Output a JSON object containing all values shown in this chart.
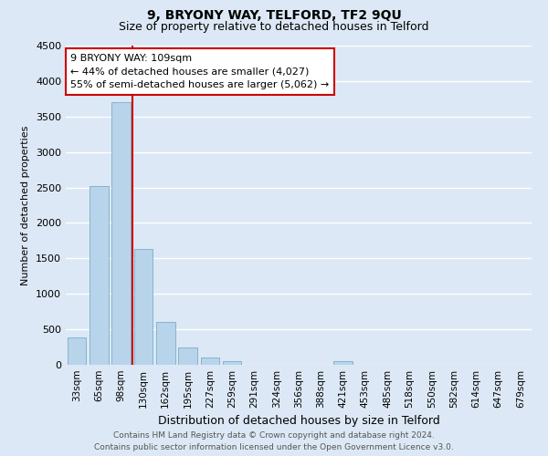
{
  "title": "9, BRYONY WAY, TELFORD, TF2 9QU",
  "subtitle": "Size of property relative to detached houses in Telford",
  "xlabel": "Distribution of detached houses by size in Telford",
  "ylabel": "Number of detached properties",
  "bar_labels": [
    "33sqm",
    "65sqm",
    "98sqm",
    "130sqm",
    "162sqm",
    "195sqm",
    "227sqm",
    "259sqm",
    "291sqm",
    "324sqm",
    "356sqm",
    "388sqm",
    "421sqm",
    "453sqm",
    "485sqm",
    "518sqm",
    "550sqm",
    "582sqm",
    "614sqm",
    "647sqm",
    "679sqm"
  ],
  "bar_values": [
    380,
    2520,
    3700,
    1630,
    600,
    240,
    100,
    55,
    0,
    0,
    0,
    0,
    50,
    0,
    0,
    0,
    0,
    0,
    0,
    0,
    0
  ],
  "bar_color": "#b8d4ea",
  "bar_edge_color": "#7aaec8",
  "vline_pos": 2.5,
  "vline_color": "#cc0000",
  "ylim": [
    0,
    4500
  ],
  "yticks": [
    0,
    500,
    1000,
    1500,
    2000,
    2500,
    3000,
    3500,
    4000,
    4500
  ],
  "annotation_title": "9 BRYONY WAY: 109sqm",
  "annotation_line1": "← 44% of detached houses are smaller (4,027)",
  "annotation_line2": "55% of semi-detached houses are larger (5,062) →",
  "annotation_box_facecolor": "#ffffff",
  "annotation_box_edgecolor": "#cc0000",
  "footer_line1": "Contains HM Land Registry data © Crown copyright and database right 2024.",
  "footer_line2": "Contains public sector information licensed under the Open Government Licence v3.0.",
  "fig_facecolor": "#dce8f5",
  "axes_facecolor": "#dce8f5",
  "grid_color": "#ffffff",
  "title_fontsize": 10,
  "subtitle_fontsize": 9,
  "ylabel_fontsize": 8,
  "xlabel_fontsize": 9,
  "tick_fontsize": 7.5,
  "ytick_fontsize": 8,
  "footer_fontsize": 6.5,
  "annotation_fontsize": 8
}
